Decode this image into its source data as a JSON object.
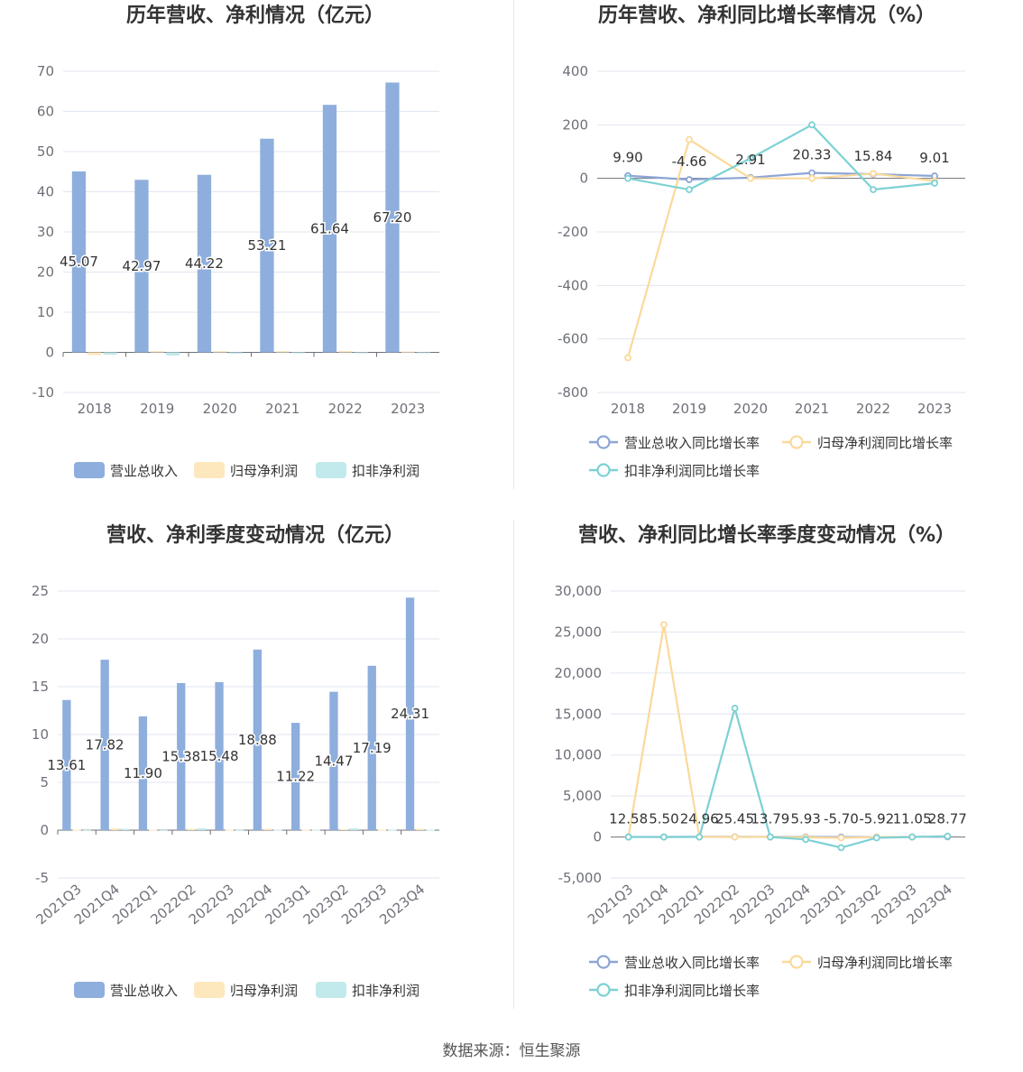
{
  "source_label": "数据来源：恒生聚源",
  "colors": {
    "revenue": "#8eaedd",
    "netprofit": "#fde7bd",
    "deducted": "#c2e9ec",
    "revenue_line": "#8da5d6",
    "netprofit_line": "#fbd99a",
    "deducted_line": "#7dd1d4",
    "grid": "#e0e6f1",
    "axis": "#6e7079"
  },
  "chart_data": [
    {
      "id": "annual-amount",
      "type": "bar",
      "title": "历年营收、净利情况（亿元）",
      "categories": [
        "2018",
        "2019",
        "2020",
        "2021",
        "2022",
        "2023"
      ],
      "ylim": [
        -10,
        70
      ],
      "yticks": [
        -10,
        0,
        10,
        20,
        30,
        40,
        50,
        60,
        70
      ],
      "series": [
        {
          "name": "营业总收入",
          "values": [
            45.07,
            42.97,
            44.22,
            53.21,
            61.64,
            67.2
          ],
          "labels": [
            "45.07",
            "42.97",
            "44.22",
            "53.21",
            "61.64",
            "67.20"
          ]
        },
        {
          "name": "归母净利润",
          "values": [
            -0.7,
            0.3,
            0.3,
            0.3,
            0.35,
            0.2
          ]
        },
        {
          "name": "扣非净利润",
          "values": [
            -0.6,
            -0.8,
            -0.3,
            -0.2,
            -0.1,
            -0.1
          ]
        }
      ]
    },
    {
      "id": "annual-growth",
      "type": "line",
      "title": "历年营收、净利同比增长率情况（%）",
      "categories": [
        "2018",
        "2019",
        "2020",
        "2021",
        "2022",
        "2023"
      ],
      "ylim": [
        -800,
        400
      ],
      "yticks": [
        -800,
        -600,
        -400,
        -200,
        0,
        200,
        400
      ],
      "labeled_series": 0,
      "series": [
        {
          "name": "营业总收入同比增长率",
          "values": [
            9.9,
            -4.66,
            2.91,
            20.33,
            15.84,
            9.01
          ],
          "labels": [
            "9.90",
            "-4.66",
            "2.91",
            "20.33",
            "15.84",
            "9.01"
          ]
        },
        {
          "name": "归母净利润同比增长率",
          "values": [
            -670,
            145,
            0,
            0,
            18,
            -10
          ]
        },
        {
          "name": "扣非净利润同比增长率",
          "values": [
            0,
            -42,
            75,
            200,
            -42,
            -18
          ]
        }
      ]
    },
    {
      "id": "quarterly-amount",
      "type": "bar",
      "title": "营收、净利季度变动情况（亿元）",
      "categories": [
        "2021Q3",
        "2021Q4",
        "2022Q1",
        "2022Q2",
        "2022Q3",
        "2022Q4",
        "2023Q1",
        "2023Q2",
        "2023Q3",
        "2023Q4"
      ],
      "ylim": [
        -5,
        25
      ],
      "yticks": [
        -5,
        0,
        5,
        10,
        15,
        20,
        25
      ],
      "series": [
        {
          "name": "营业总收入",
          "values": [
            13.61,
            17.82,
            11.9,
            15.38,
            15.48,
            18.88,
            11.22,
            14.47,
            17.19,
            24.31
          ],
          "labels": [
            "13.61",
            "17.82",
            "11.90",
            "15.38",
            "15.48",
            "18.88",
            "11.22",
            "14.47",
            "17.19",
            "24.31"
          ]
        },
        {
          "name": "归母净利润",
          "values": [
            0.05,
            0.2,
            0.05,
            0.15,
            0.05,
            0.15,
            0.05,
            0.1,
            0.05,
            0.15
          ]
        },
        {
          "name": "扣非净利润",
          "values": [
            0.02,
            0.15,
            0.02,
            0.2,
            0.03,
            0.05,
            0.05,
            0.2,
            0.05,
            0.05
          ]
        }
      ]
    },
    {
      "id": "quarterly-growth",
      "type": "line",
      "title": "营收、净利同比增长率季度变动情况（%）",
      "categories": [
        "2021Q3",
        "2021Q4",
        "2022Q1",
        "2022Q2",
        "2022Q3",
        "2022Q4",
        "2023Q1",
        "2023Q2",
        "2023Q3",
        "2023Q4"
      ],
      "ylim": [
        -5000,
        30000
      ],
      "yticks": [
        -5000,
        0,
        5000,
        10000,
        15000,
        20000,
        25000,
        30000
      ],
      "ytick_labels": [
        "-5,000",
        "0",
        "5,000",
        "10,000",
        "15,000",
        "20,000",
        "25,000",
        "30,000"
      ],
      "labeled_series": 0,
      "series": [
        {
          "name": "营业总收入同比增长率",
          "values": [
            12.58,
            5.5,
            24.96,
            25.45,
            13.79,
            5.93,
            -5.7,
            -5.92,
            11.05,
            28.77
          ],
          "labels": [
            "12.58",
            "5.50",
            "24.96",
            "25.45",
            "13.79",
            "5.93",
            "-5.70",
            "-5.92",
            "11.05",
            "28.77"
          ]
        },
        {
          "name": "归母净利润同比增长率",
          "values": [
            0,
            25900,
            0,
            0,
            0,
            -50,
            -100,
            0,
            0,
            100
          ]
        },
        {
          "name": "扣非净利润同比增长率",
          "values": [
            0,
            0,
            0,
            15700,
            0,
            -300,
            -1300,
            -100,
            0,
            100
          ]
        }
      ]
    }
  ]
}
